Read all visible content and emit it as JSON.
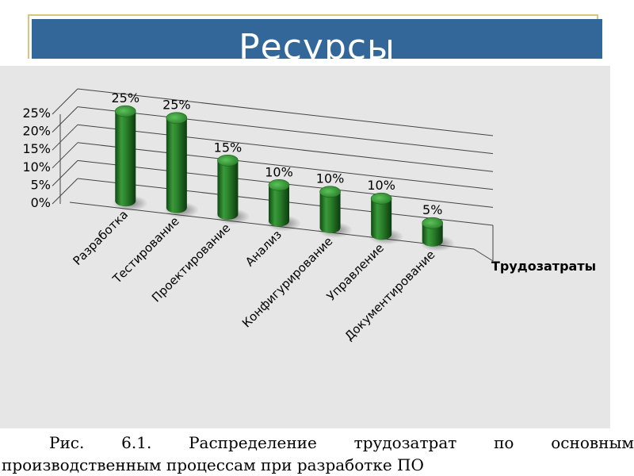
{
  "slide": {
    "title": "Ресурсы"
  },
  "caption": {
    "words_line1": [
      "Рис.",
      "6.1.",
      "Распределение",
      "трудозатрат",
      "по",
      "основным"
    ],
    "line2": "производственным процессам при разработке ПО"
  },
  "chart_data": {
    "type": "bar",
    "style": "3d-cylinder",
    "bar_color": "#2e7d2e",
    "background": "#e6e6e6",
    "categories": [
      "Разработка",
      "Тестирование",
      "Проектирование",
      "Анализ",
      "Конфигурирование",
      "Управление",
      "Документирование"
    ],
    "series": [
      {
        "name": "Трудозатраты",
        "values": [
          25,
          25,
          15,
          10,
          10,
          10,
          5
        ]
      }
    ],
    "data_labels": [
      "25%",
      "25%",
      "15%",
      "10%",
      "10%",
      "10%",
      "5%"
    ],
    "yticks": [
      "0%",
      "5%",
      "10%",
      "15%",
      "20%",
      "25%"
    ],
    "ylim": [
      0,
      25
    ],
    "grid": true,
    "legend": "right"
  }
}
